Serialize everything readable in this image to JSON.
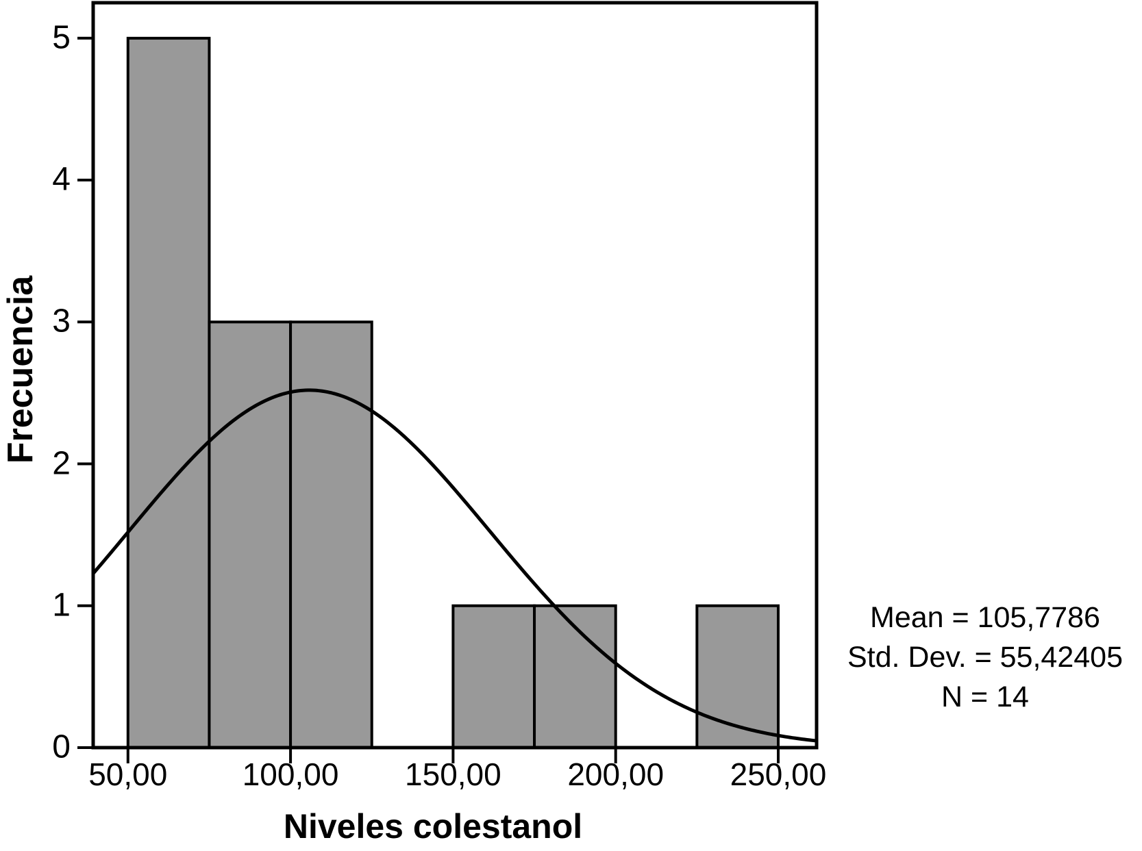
{
  "chart_data": {
    "type": "bar",
    "subtype": "histogram",
    "title": "",
    "xlabel": "Niveles colestanol",
    "ylabel": "Frecuencia",
    "bin_edges": [
      50,
      75,
      100,
      125,
      150,
      175,
      200,
      225,
      250
    ],
    "counts": [
      5,
      3,
      3,
      0,
      1,
      1,
      0,
      1
    ],
    "x_tick_values": [
      50,
      100,
      150,
      200,
      250
    ],
    "x_tick_labels": [
      "50,00",
      "100,00",
      "150,00",
      "200,00",
      "250,00"
    ],
    "y_tick_values": [
      0,
      1,
      2,
      3,
      4,
      5
    ],
    "y_tick_labels": [
      "0",
      "1",
      "2",
      "3",
      "4",
      "5"
    ],
    "xlim": [
      39.3,
      261.8
    ],
    "ylim": [
      0,
      5.25
    ],
    "grid": false,
    "legend": "none",
    "normal_curve": {
      "mean": 105.7786,
      "std_dev": 55.42405,
      "n": 14,
      "bin_width": 25
    },
    "annotation": {
      "position": "right-of-plot",
      "lines": [
        "Mean = 105,7786",
        "Std. Dev. = 55,42405",
        "N = 14"
      ]
    },
    "colors": {
      "bar_fill": "#999999",
      "bar_stroke": "#000000",
      "curve": "#000000",
      "axis": "#000000",
      "text": "#000000",
      "background": "#ffffff"
    }
  }
}
